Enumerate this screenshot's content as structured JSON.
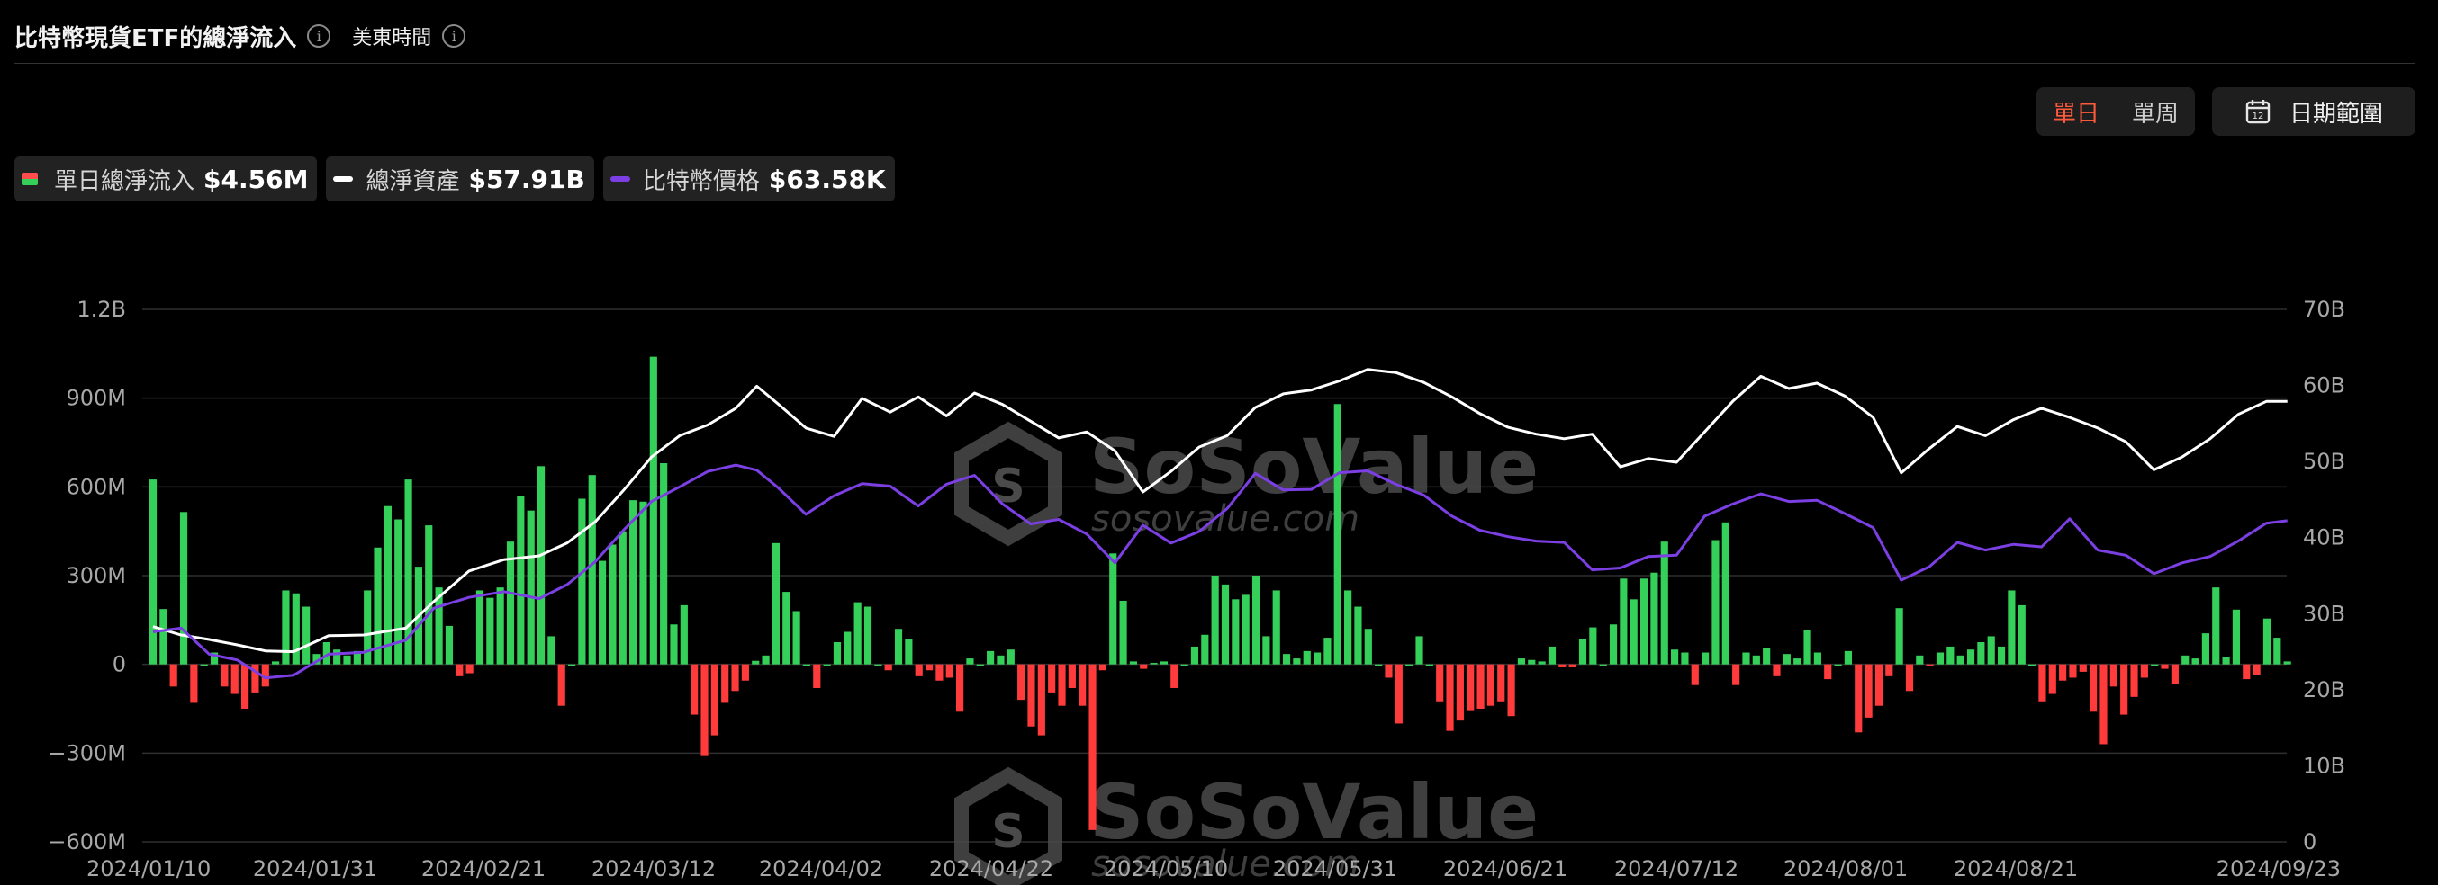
{
  "header": {
    "title": "比特幣現貨ETF的總淨流入",
    "timezone_label": "美東時間"
  },
  "controls": {
    "day_label": "單日",
    "week_label": "單周",
    "date_range_label": "日期範圍"
  },
  "legend": {
    "flow_label": "單日總淨流入",
    "flow_value": "$4.56M",
    "assets_label": "總淨資產",
    "assets_value": "$57.91B",
    "price_label": "比特幣價格",
    "price_value": "$63.58K"
  },
  "watermark": {
    "brand": "SoSoValue",
    "domain": "sosovalue.com"
  },
  "colors": {
    "inflow": "#35d05a",
    "outflow": "#ff3b3b",
    "assets_line": "#ffffff",
    "price_line": "#7b3fe4",
    "active_toggle": "#ff5a3c"
  },
  "chart_data": {
    "type": "bar",
    "x_tick_labels": [
      "2024/01/10",
      "2024/01/31",
      "2024/02/21",
      "2024/03/12",
      "2024/04/02",
      "2024/04/22",
      "2024/05/10",
      "2024/05/31",
      "2024/06/21",
      "2024/07/12",
      "2024/08/01",
      "2024/08/21",
      "2024/09/23"
    ],
    "y_left_ticks": [
      "1.2B",
      "900M",
      "600M",
      "300M",
      "0",
      "−300M",
      "−600M"
    ],
    "y_right_ticks": [
      "70B",
      "60B",
      "50B",
      "40B",
      "30B",
      "20B",
      "10B",
      "0"
    ],
    "y_left_range": [
      -600,
      1200
    ],
    "y_left_unit": "M USD",
    "y_right_range": [
      0,
      70
    ],
    "y_right_unit": "B USD",
    "grid": true,
    "series": [
      {
        "name": "單日總淨流入",
        "kind": "bar",
        "unit": "M USD",
        "values": [
          625,
          187,
          -75,
          515,
          -130,
          0,
          40,
          -75,
          -100,
          -150,
          -95,
          -75,
          10,
          250,
          240,
          195,
          35,
          75,
          50,
          30,
          45,
          250,
          395,
          535,
          490,
          625,
          330,
          470,
          260,
          130,
          -40,
          -30,
          250,
          225,
          260,
          415,
          570,
          520,
          670,
          95,
          -140,
          0,
          560,
          640,
          350,
          405,
          450,
          555,
          550,
          1040,
          680,
          135,
          200,
          -170,
          -310,
          -240,
          -130,
          -90,
          -55,
          12,
          30,
          410,
          245,
          180,
          0,
          -80,
          0,
          75,
          110,
          210,
          195,
          0,
          -20,
          120,
          85,
          -40,
          -20,
          -55,
          -45,
          -160,
          20,
          0,
          45,
          30,
          50,
          -120,
          -210,
          -240,
          -95,
          -140,
          -80,
          -140,
          -560,
          -20,
          375,
          215,
          10,
          -15,
          5,
          10,
          -80,
          0,
          60,
          100,
          300,
          270,
          220,
          235,
          300,
          95,
          250,
          35,
          20,
          45,
          40,
          90,
          880,
          250,
          195,
          120,
          0,
          -45,
          -200,
          0,
          95,
          0,
          -125,
          -225,
          -190,
          -155,
          -150,
          -140,
          -125,
          -175,
          20,
          15,
          10,
          60,
          -10,
          -10,
          85,
          125,
          0,
          135,
          290,
          220,
          290,
          310,
          415,
          50,
          40,
          -70,
          40,
          420,
          480,
          -70,
          40,
          30,
          55,
          -40,
          35,
          20,
          115,
          40,
          -50,
          0,
          45,
          -230,
          -180,
          -140,
          -40,
          190,
          -90,
          30,
          -5,
          40,
          60,
          30,
          50,
          75,
          95,
          60,
          250,
          200,
          0,
          -125,
          -100,
          -55,
          -45,
          -25,
          -160,
          -270,
          -75,
          -170,
          -110,
          -45,
          0,
          -15,
          -65,
          30,
          20,
          105,
          260,
          25,
          185,
          -50,
          -35,
          155,
          90,
          10
        ]
      },
      {
        "name": "總淨資產",
        "kind": "line",
        "unit": "B USD",
        "points": [
          [
            0,
            28.3
          ],
          [
            8,
            27.2
          ],
          [
            16,
            26.6
          ],
          [
            24,
            25.9
          ],
          [
            32,
            25.1
          ],
          [
            40,
            25.0
          ],
          [
            50,
            27.1
          ],
          [
            60,
            27.2
          ],
          [
            72,
            28.1
          ],
          [
            80,
            31.6
          ],
          [
            90,
            35.6
          ],
          [
            100,
            37.1
          ],
          [
            110,
            37.6
          ],
          [
            118,
            39.3
          ],
          [
            126,
            42.1
          ],
          [
            134,
            46.2
          ],
          [
            142,
            50.6
          ],
          [
            150,
            53.4
          ],
          [
            158,
            54.8
          ],
          [
            166,
            57.0
          ],
          [
            172,
            59.9
          ],
          [
            178,
            57.6
          ],
          [
            186,
            54.4
          ],
          [
            194,
            53.3
          ],
          [
            202,
            58.3
          ],
          [
            210,
            56.5
          ],
          [
            218,
            58.5
          ],
          [
            226,
            56.0
          ],
          [
            234,
            59.0
          ],
          [
            242,
            57.5
          ],
          [
            250,
            55.3
          ],
          [
            258,
            53.1
          ],
          [
            266,
            53.9
          ],
          [
            274,
            51.4
          ],
          [
            282,
            46.0
          ],
          [
            290,
            48.7
          ],
          [
            298,
            51.9
          ],
          [
            306,
            53.4
          ],
          [
            314,
            57.1
          ],
          [
            322,
            58.9
          ],
          [
            330,
            59.4
          ],
          [
            338,
            60.6
          ],
          [
            346,
            62.1
          ],
          [
            354,
            61.7
          ],
          [
            362,
            60.4
          ],
          [
            370,
            58.5
          ],
          [
            378,
            56.3
          ],
          [
            386,
            54.5
          ],
          [
            394,
            53.6
          ],
          [
            402,
            53.0
          ],
          [
            410,
            53.6
          ],
          [
            418,
            49.3
          ],
          [
            426,
            50.4
          ],
          [
            434,
            49.9
          ],
          [
            442,
            53.9
          ],
          [
            450,
            57.9
          ],
          [
            458,
            61.2
          ],
          [
            466,
            59.6
          ],
          [
            474,
            60.3
          ],
          [
            482,
            58.6
          ],
          [
            490,
            55.8
          ],
          [
            498,
            48.5
          ],
          [
            506,
            51.7
          ],
          [
            514,
            54.6
          ],
          [
            522,
            53.4
          ],
          [
            530,
            55.5
          ],
          [
            538,
            57.0
          ],
          [
            546,
            55.8
          ],
          [
            554,
            54.4
          ],
          [
            562,
            52.6
          ],
          [
            570,
            48.9
          ],
          [
            578,
            50.6
          ],
          [
            586,
            53.0
          ],
          [
            594,
            56.2
          ],
          [
            602,
            57.9
          ],
          [
            608,
            57.9
          ]
        ]
      },
      {
        "name": "比特幣價格",
        "kind": "line",
        "unit": "K USD",
        "points": [
          [
            0,
            46.2
          ],
          [
            8,
            46.8
          ],
          [
            16,
            42.7
          ],
          [
            24,
            41.8
          ],
          [
            32,
            39.0
          ],
          [
            40,
            39.4
          ],
          [
            50,
            42.7
          ],
          [
            60,
            43.0
          ],
          [
            72,
            44.9
          ],
          [
            80,
            49.9
          ],
          [
            90,
            51.6
          ],
          [
            100,
            52.5
          ],
          [
            110,
            51.4
          ],
          [
            118,
            53.6
          ],
          [
            126,
            57.2
          ],
          [
            134,
            62.1
          ],
          [
            142,
            66.6
          ],
          [
            150,
            68.9
          ],
          [
            158,
            71.3
          ],
          [
            166,
            72.3
          ],
          [
            172,
            71.5
          ],
          [
            178,
            68.8
          ],
          [
            186,
            64.6
          ],
          [
            194,
            67.5
          ],
          [
            202,
            69.4
          ],
          [
            210,
            69.0
          ],
          [
            218,
            65.9
          ],
          [
            226,
            69.3
          ],
          [
            234,
            70.7
          ],
          [
            242,
            66.2
          ],
          [
            250,
            63.1
          ],
          [
            258,
            63.8
          ],
          [
            266,
            61.5
          ],
          [
            274,
            57.0
          ],
          [
            282,
            62.9
          ],
          [
            290,
            60.1
          ],
          [
            298,
            61.9
          ],
          [
            306,
            65.5
          ],
          [
            314,
            71.0
          ],
          [
            322,
            68.4
          ],
          [
            330,
            68.5
          ],
          [
            338,
            71.1
          ],
          [
            346,
            71.4
          ],
          [
            354,
            69.3
          ],
          [
            362,
            67.6
          ],
          [
            370,
            64.3
          ],
          [
            378,
            62.1
          ],
          [
            386,
            61.1
          ],
          [
            394,
            60.4
          ],
          [
            402,
            60.2
          ],
          [
            410,
            55.9
          ],
          [
            418,
            56.2
          ],
          [
            426,
            58.0
          ],
          [
            434,
            58.2
          ],
          [
            442,
            64.3
          ],
          [
            450,
            66.2
          ],
          [
            458,
            67.8
          ],
          [
            466,
            66.6
          ],
          [
            474,
            66.8
          ],
          [
            482,
            64.7
          ],
          [
            490,
            62.5
          ],
          [
            498,
            54.3
          ],
          [
            506,
            56.4
          ],
          [
            514,
            60.2
          ],
          [
            522,
            59.0
          ],
          [
            530,
            59.9
          ],
          [
            538,
            59.5
          ],
          [
            546,
            63.9
          ],
          [
            554,
            59.0
          ],
          [
            562,
            58.2
          ],
          [
            570,
            55.3
          ],
          [
            578,
            57.0
          ],
          [
            586,
            58.0
          ],
          [
            594,
            60.4
          ],
          [
            602,
            63.2
          ],
          [
            608,
            63.6
          ]
        ]
      }
    ]
  }
}
